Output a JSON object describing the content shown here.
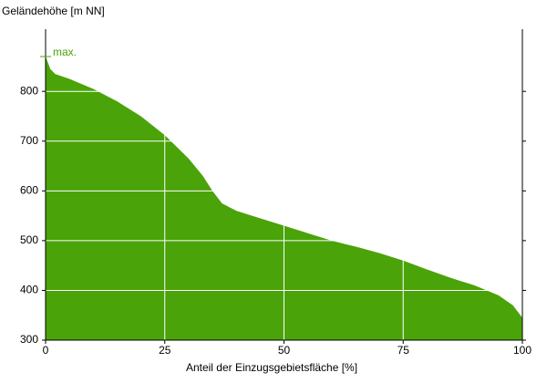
{
  "chart_data": {
    "type": "area",
    "y_label": "Geländehöhe [m NN]",
    "x_label": "Anteil der Einzugsgebietsfläche [%]",
    "x": [
      0,
      1,
      2,
      5,
      10,
      15,
      20,
      25,
      30,
      33,
      35,
      37,
      40,
      45,
      50,
      55,
      60,
      65,
      70,
      75,
      80,
      85,
      90,
      95,
      98,
      100
    ],
    "values": [
      870,
      845,
      835,
      825,
      805,
      780,
      750,
      712,
      665,
      630,
      600,
      575,
      560,
      545,
      530,
      515,
      500,
      488,
      475,
      460,
      442,
      425,
      410,
      390,
      370,
      345
    ],
    "color": "#4aa308",
    "xlim": [
      0,
      100
    ],
    "xticks": [
      0,
      25,
      50,
      75,
      100
    ],
    "ylim": [
      300,
      925
    ],
    "yticks": [
      300,
      400,
      500,
      600,
      700,
      800
    ],
    "grid": true,
    "annotation": {
      "text": "max.",
      "value": 870
    }
  }
}
